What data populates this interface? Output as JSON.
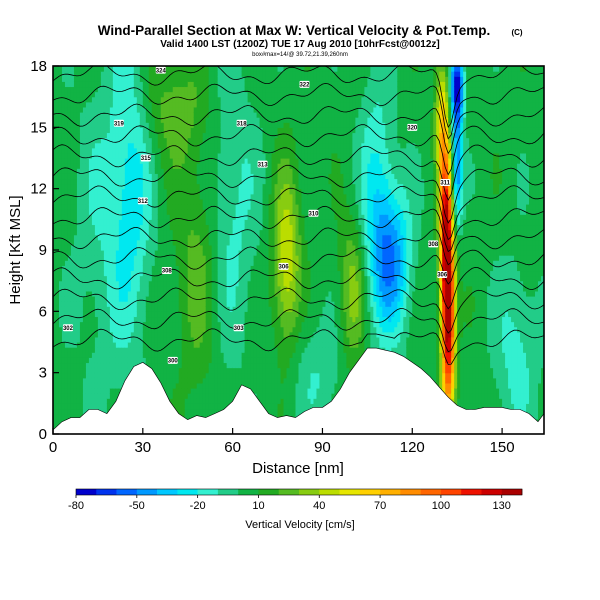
{
  "chart_data": {
    "type": "heatmap",
    "title": "Wind-Parallel Section at Max W: Vertical Velocity & Pot.Temp.",
    "title_mark": "(C)",
    "subtitle": "Valid 1400 LST (1200Z) TUE 17 Aug 2010 [10hrFcst@0012z]",
    "subtitle2": "box#max=14/@ 39.72,21.39,260nm",
    "xlabel": "Distance [nm]",
    "ylabel": "Height [Kft MSL]",
    "xlim": [
      0,
      164
    ],
    "ylim": [
      0,
      18
    ],
    "xticks": [
      0,
      30,
      60,
      90,
      120,
      150
    ],
    "yticks": [
      0,
      3,
      6,
      9,
      12,
      15,
      18
    ],
    "colorbar": {
      "label": "Vertical Velocity [cm/s]",
      "levels": [
        -80,
        -70,
        -60,
        -50,
        -40,
        -30,
        -20,
        -10,
        0,
        10,
        20,
        30,
        40,
        50,
        60,
        70,
        80,
        90,
        100,
        110,
        120,
        130,
        140
      ],
      "tick_labels": [
        "-80",
        "-50",
        "-20",
        "10",
        "40",
        "70",
        "100",
        "130"
      ],
      "colors": [
        "#0000cc",
        "#0033ee",
        "#0066ff",
        "#0099ff",
        "#00c8ff",
        "#00e8f0",
        "#33f0d0",
        "#22cc88",
        "#11b344",
        "#22aa22",
        "#55bb22",
        "#88cc11",
        "#bbdd00",
        "#e6e600",
        "#ffd000",
        "#ffb000",
        "#ff8c00",
        "#ff6600",
        "#ff4400",
        "#ee1100",
        "#cc0000",
        "#aa0000"
      ]
    },
    "terrain": {
      "x": [
        0,
        3,
        6,
        9,
        12,
        15,
        18,
        21,
        24,
        27,
        30,
        33,
        36,
        39,
        42,
        45,
        48,
        51,
        54,
        57,
        60,
        63,
        66,
        69,
        72,
        75,
        78,
        81,
        84,
        87,
        90,
        93,
        96,
        99,
        102,
        105,
        108,
        111,
        114,
        117,
        120,
        123,
        126,
        129,
        132,
        135,
        138,
        141,
        144,
        147,
        150,
        153,
        156,
        159,
        162,
        164
      ],
      "height": [
        0.2,
        0.6,
        0.8,
        0.8,
        1.2,
        1.2,
        1.0,
        1.6,
        2.6,
        3.3,
        3.5,
        3.2,
        2.5,
        1.6,
        1.0,
        0.7,
        0.9,
        0.8,
        1.0,
        1.2,
        1.6,
        2.4,
        2.2,
        1.6,
        1.0,
        0.8,
        0.9,
        0.8,
        1.1,
        1.3,
        1.3,
        1.6,
        2.2,
        3.0,
        3.6,
        4.2,
        4.2,
        4.1,
        4.0,
        3.8,
        3.5,
        3.2,
        2.8,
        2.3,
        1.8,
        1.4,
        1.2,
        1.2,
        1.3,
        1.3,
        1.3,
        1.2,
        1.2,
        1.0,
        0.6,
        1.0
      ]
    },
    "vertical_velocity_features": [
      {
        "x": 132,
        "y": 6,
        "sx": 1.6,
        "sy": 3.6,
        "value": 140
      },
      {
        "x": 131,
        "y": 10.5,
        "sx": 1.4,
        "sy": 2.6,
        "value": 75
      },
      {
        "x": 130,
        "y": 15.5,
        "sx": 1.6,
        "sy": 2.2,
        "value": 55
      },
      {
        "x": 135,
        "y": 17,
        "sx": 1.6,
        "sy": 1.3,
        "value": -80
      },
      {
        "x": 135,
        "y": 13,
        "sx": 1.2,
        "sy": 2.0,
        "value": -55
      },
      {
        "x": 113,
        "y": 8.5,
        "sx": 4.5,
        "sy": 2.5,
        "value": -50
      },
      {
        "x": 108,
        "y": 12,
        "sx": 4.0,
        "sy": 4.0,
        "value": -25
      },
      {
        "x": 78,
        "y": 8.5,
        "sx": 3.2,
        "sy": 3.0,
        "value": 45
      },
      {
        "x": 100,
        "y": 7,
        "sx": 3.0,
        "sy": 2.5,
        "value": 30
      },
      {
        "x": 26,
        "y": 12,
        "sx": 5.0,
        "sy": 5.5,
        "value": -30
      },
      {
        "x": 60,
        "y": 11,
        "sx": 6.0,
        "sy": 5.0,
        "value": -18
      },
      {
        "x": 48,
        "y": 8,
        "sx": 5.0,
        "sy": 4.0,
        "value": 20
      },
      {
        "x": 15,
        "y": 10,
        "sx": 6.0,
        "sy": 6.0,
        "value": -12
      },
      {
        "x": 88,
        "y": 3,
        "sx": 6.0,
        "sy": 2.0,
        "value": -15
      },
      {
        "x": 155,
        "y": 4,
        "sx": 5.0,
        "sy": 3.0,
        "value": -20
      },
      {
        "x": 40,
        "y": 16,
        "sx": 8.0,
        "sy": 2.0,
        "value": 20
      }
    ],
    "background_velocity": 5,
    "potential_temperature_contours": {
      "levels_kft": [
        4.6,
        5.6,
        6.6,
        7.6,
        8.6,
        9.6,
        10.6,
        11.6,
        12.6,
        13.6,
        14.6,
        15.6,
        16.6,
        17.6
      ],
      "labels": [
        {
          "x": 5,
          "y": 5.2,
          "text": "302"
        },
        {
          "x": 40,
          "y": 3.6,
          "text": "300"
        },
        {
          "x": 62,
          "y": 5.2,
          "text": "303"
        },
        {
          "x": 77,
          "y": 8.2,
          "text": "306"
        },
        {
          "x": 38,
          "y": 8.0,
          "text": "308"
        },
        {
          "x": 127,
          "y": 9.3,
          "text": "308"
        },
        {
          "x": 130,
          "y": 7.8,
          "text": "306"
        },
        {
          "x": 87,
          "y": 10.8,
          "text": "310"
        },
        {
          "x": 30,
          "y": 11.4,
          "text": "312"
        },
        {
          "x": 131,
          "y": 12.3,
          "text": "311"
        },
        {
          "x": 70,
          "y": 13.2,
          "text": "313"
        },
        {
          "x": 31,
          "y": 13.5,
          "text": "315"
        },
        {
          "x": 22,
          "y": 15.2,
          "text": "319"
        },
        {
          "x": 63,
          "y": 15.2,
          "text": "318"
        },
        {
          "x": 120,
          "y": 15.0,
          "text": "320"
        },
        {
          "x": 84,
          "y": 17.1,
          "text": "322"
        },
        {
          "x": 36,
          "y": 17.8,
          "text": "324"
        }
      ]
    }
  }
}
